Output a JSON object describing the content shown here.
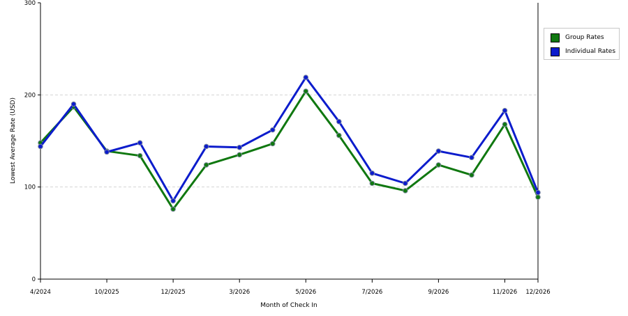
{
  "chart_data": {
    "type": "line",
    "xlabel": "Month of Check In",
    "ylabel": "Lowest Average Rate (USD)",
    "ylim": [
      0,
      300
    ],
    "yticks": [
      0,
      100,
      200,
      300
    ],
    "x_tick_labels": [
      {
        "index": 0,
        "label": "4/2024"
      },
      {
        "index": 2,
        "label": "10/2025"
      },
      {
        "index": 4,
        "label": "12/2025"
      },
      {
        "index": 6,
        "label": "3/2026"
      },
      {
        "index": 8,
        "label": "5/2026"
      },
      {
        "index": 10,
        "label": "7/2026"
      },
      {
        "index": 12,
        "label": "9/2026"
      },
      {
        "index": 14,
        "label": "11/2026"
      },
      {
        "index": 15,
        "label": "12/2026"
      }
    ],
    "grid": "horizontal dashed",
    "legend_position": "right",
    "series": [
      {
        "name": "Group Rates",
        "color": "#107810",
        "values": [
          148,
          187,
          139,
          134,
          76,
          124,
          135,
          147,
          204,
          156,
          104,
          96,
          124,
          113,
          168,
          89
        ]
      },
      {
        "name": "Individual Rates",
        "color": "#0c1ccc",
        "values": [
          144,
          190,
          138,
          148,
          85,
          144,
          143,
          162,
          219,
          171,
          115,
          104,
          139,
          132,
          183,
          94
        ]
      }
    ]
  }
}
